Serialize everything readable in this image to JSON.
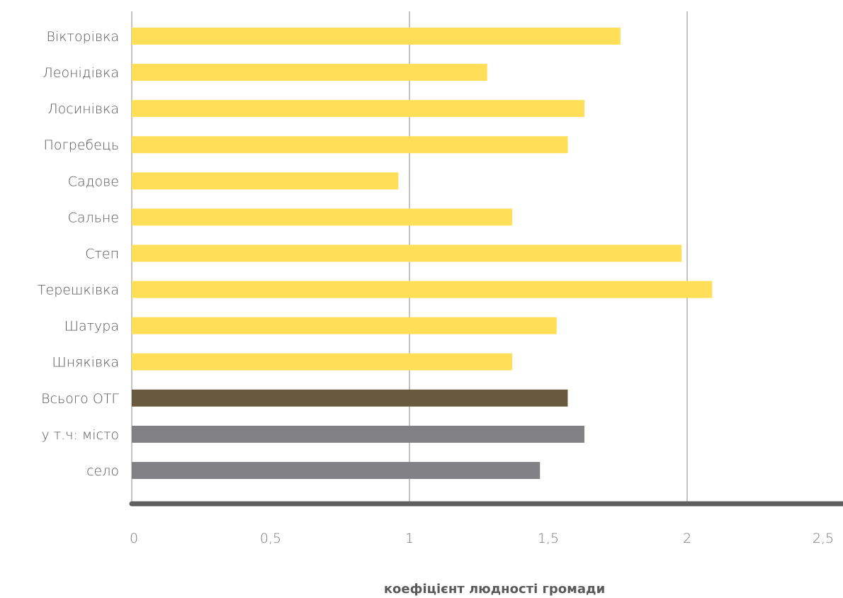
{
  "chart_data": {
    "type": "bar",
    "orientation": "horizontal",
    "categories": [
      "Вікторівка",
      "Леонідівка",
      "Лосинівка",
      "Погребець",
      "Садове",
      "Сальне",
      "Степ",
      "Терешківка",
      "Шатура",
      "Шняківка",
      "Всього ОТГ",
      "у т.ч: місто",
      "село"
    ],
    "values": [
      1.76,
      1.28,
      1.63,
      1.57,
      0.96,
      1.37,
      1.98,
      2.09,
      1.53,
      1.37,
      1.57,
      1.63,
      1.47
    ],
    "bar_colors": [
      "#FFDF57",
      "#FFDF57",
      "#FFDF57",
      "#FFDF57",
      "#FFDF57",
      "#FFDF57",
      "#FFDF57",
      "#FFDF57",
      "#FFDF57",
      "#FFDF57",
      "#6A5A3D",
      "#818185",
      "#818185"
    ],
    "x_ticks": [
      "0",
      "0,5",
      "1",
      "1,5",
      "2",
      "2,5"
    ],
    "xlim": [
      0,
      2.5
    ],
    "xlabel": "коефіцієнт людності громади",
    "ylabel": "",
    "title": "",
    "grid": true,
    "legend": "none"
  },
  "colors": {
    "highlight_bar": "#FFDF57",
    "total_bar": "#6A5A3D",
    "sub_bar": "#818185",
    "gridline": "#C4C4C4",
    "axis_line": "#5F5F5F"
  }
}
